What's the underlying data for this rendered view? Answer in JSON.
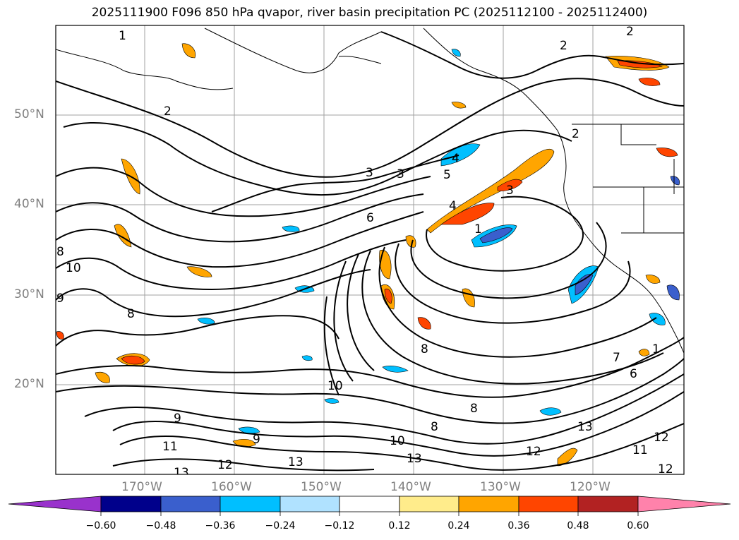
{
  "title": "2025111900 F096 850 hPa qvapor, river basin precipitation PC (2025112100 - 2025112400)",
  "lat_labels": [
    "50°N",
    "40°N",
    "30°N",
    "20°N"
  ],
  "lon_labels": [
    "170°W",
    "160°W",
    "150°W",
    "140°W",
    "130°W",
    "120°W"
  ],
  "colorbar": {
    "colors": [
      "#9932cc",
      "#00008b",
      "#3a5fcd",
      "#00bfff",
      "#b0e2ff",
      "#ffffff",
      "#ffec8b",
      "#ffa500",
      "#ff4500",
      "#b22222",
      "#ff82ab"
    ],
    "ticks": [
      "−0.60",
      "−0.48",
      "−0.36",
      "−0.24",
      "−0.12",
      "0.12",
      "0.24",
      "0.36",
      "0.48",
      "0.60"
    ]
  },
  "contour_labels": [
    "1",
    "2",
    "2",
    "2",
    "3",
    "3",
    "3",
    "4",
    "4",
    "5",
    "6",
    "7",
    "8",
    "8",
    "8",
    "8",
    "8",
    "9",
    "9",
    "9",
    "10",
    "10",
    "10",
    "11",
    "11",
    "12",
    "12",
    "12",
    "13",
    "13",
    "13",
    "13",
    "1",
    "2",
    "1",
    "6",
    "12"
  ]
}
